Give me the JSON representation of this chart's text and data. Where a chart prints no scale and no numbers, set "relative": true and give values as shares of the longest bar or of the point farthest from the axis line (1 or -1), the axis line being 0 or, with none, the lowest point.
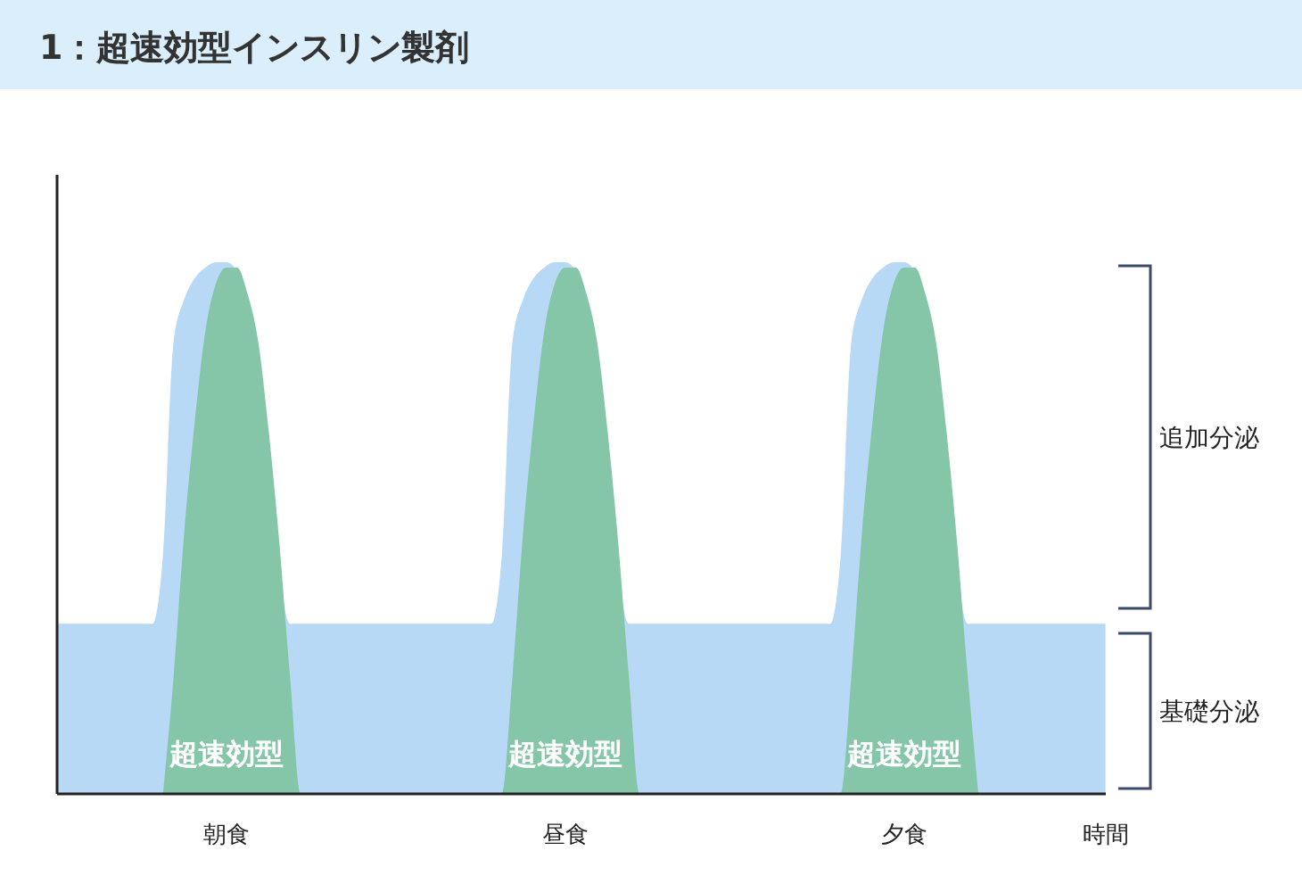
{
  "chart_data": {
    "type": "area",
    "title": "1：超速効型インスリン製剤",
    "xlabel": "時間",
    "relative": true,
    "categories": [
      null,
      null,
      null,
      null,
      null,
      null,
      null,
      null,
      null,
      null,
      null,
      null,
      null,
      null,
      null,
      null,
      "朝食",
      null,
      null,
      null,
      null,
      null,
      null,
      null,
      null,
      null,
      null,
      null,
      null,
      null,
      null,
      null,
      null,
      null,
      null,
      null,
      null,
      null,
      null,
      null,
      null,
      null,
      null,
      null,
      null,
      null,
      null,
      null,
      "昼食",
      null,
      null,
      null,
      null,
      null,
      null,
      null,
      null,
      null,
      null,
      null,
      null,
      null,
      null,
      null,
      null,
      null,
      null,
      null,
      null,
      null,
      null,
      null,
      null,
      null,
      null,
      null,
      null,
      null,
      null,
      null,
      "夕食",
      null,
      null,
      null,
      null,
      null,
      null,
      null,
      null,
      null,
      null,
      null,
      null,
      null,
      null,
      null,
      null,
      null,
      null,
      null
    ],
    "series": [
      {
        "color": "#b8d9f5",
        "values": [
          0.32,
          0.32,
          0.32,
          0.32,
          0.32,
          0.32,
          0.32,
          0.32,
          0.32,
          0.32,
          0.45,
          0.85,
          0.93,
          0.97,
          0.99,
          1,
          1,
          null,
          0.93,
          0.82,
          null,
          null,
          0.32,
          0.32,
          0.32,
          0.32,
          0.32,
          0.32,
          0.32,
          0.32,
          0.32,
          0.32,
          0.32,
          0.32,
          0.32,
          0.32,
          0.32,
          0.32,
          0.32,
          0.32,
          0.32,
          0.32,
          0.45,
          0.85,
          0.93,
          0.97,
          0.99,
          1,
          1,
          null,
          0.93,
          0.82,
          null,
          null,
          0.32,
          0.32,
          0.32,
          0.32,
          0.32,
          0.32,
          0.32,
          0.32,
          0.32,
          0.32,
          0.32,
          0.32,
          0.32,
          0.32,
          0.32,
          0.32,
          0.32,
          0.32,
          0.32,
          0.32,
          0.45,
          0.85,
          0.93,
          0.97,
          0.99,
          1,
          1,
          null,
          0.93,
          0.82,
          null,
          null,
          0.32,
          0.32,
          0.32,
          0.32,
          0.32,
          0.32,
          0.32,
          0.32,
          0.32,
          0.32,
          0.32,
          0.32,
          0.32,
          0.32
        ]
      },
      {
        "color": "#84c6a7",
        "values": [
          null,
          null,
          null,
          null,
          null,
          null,
          null,
          null,
          null,
          null,
          0,
          0.22,
          0.49,
          0.7,
          0.87,
          0.96,
          0.99,
          0.99,
          0.94,
          0.85,
          0.68,
          0.47,
          0.22,
          0,
          null,
          null,
          null,
          null,
          null,
          null,
          null,
          null,
          null,
          null,
          null,
          null,
          null,
          null,
          null,
          null,
          null,
          null,
          0,
          0.22,
          0.49,
          0.7,
          0.87,
          0.96,
          0.99,
          0.99,
          0.94,
          0.85,
          0.68,
          0.47,
          0.22,
          0,
          null,
          null,
          null,
          null,
          null,
          null,
          null,
          null,
          null,
          null,
          null,
          null,
          null,
          null,
          null,
          null,
          null,
          null,
          0,
          0.22,
          0.49,
          0.7,
          0.87,
          0.96,
          0.99,
          0.99,
          0.94,
          0.85,
          0.68,
          0.47,
          0.22,
          0,
          null,
          null,
          null,
          null,
          null,
          null,
          null,
          null,
          null,
          null,
          null,
          null
        ]
      }
    ],
    "annotations": [
      "超速効型",
      "超速効型",
      "超速効型",
      "追加分泌",
      "基礎分泌"
    ]
  }
}
